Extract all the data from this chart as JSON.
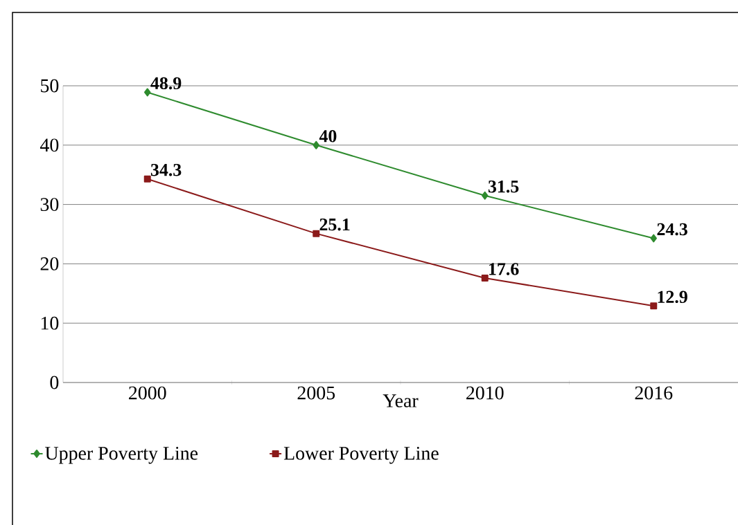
{
  "chart_data": {
    "type": "line",
    "xlabel": "Year",
    "categories": [
      "2000",
      "2005",
      "2010",
      "2016"
    ],
    "series": [
      {
        "name": "Upper Poverty Line",
        "color": "#2e8b2e",
        "marker": "diamond",
        "values": [
          48.9,
          40,
          31.5,
          24.3
        ]
      },
      {
        "name": "Lower Poverty Line",
        "color": "#8b1a1a",
        "marker": "square",
        "values": [
          34.3,
          25.1,
          17.6,
          12.9
        ]
      }
    ],
    "ylim": [
      0,
      50
    ],
    "yticks": [
      0,
      10,
      20,
      30,
      40,
      50
    ],
    "grid": "y",
    "legend": "bottom",
    "data_labels": true
  }
}
